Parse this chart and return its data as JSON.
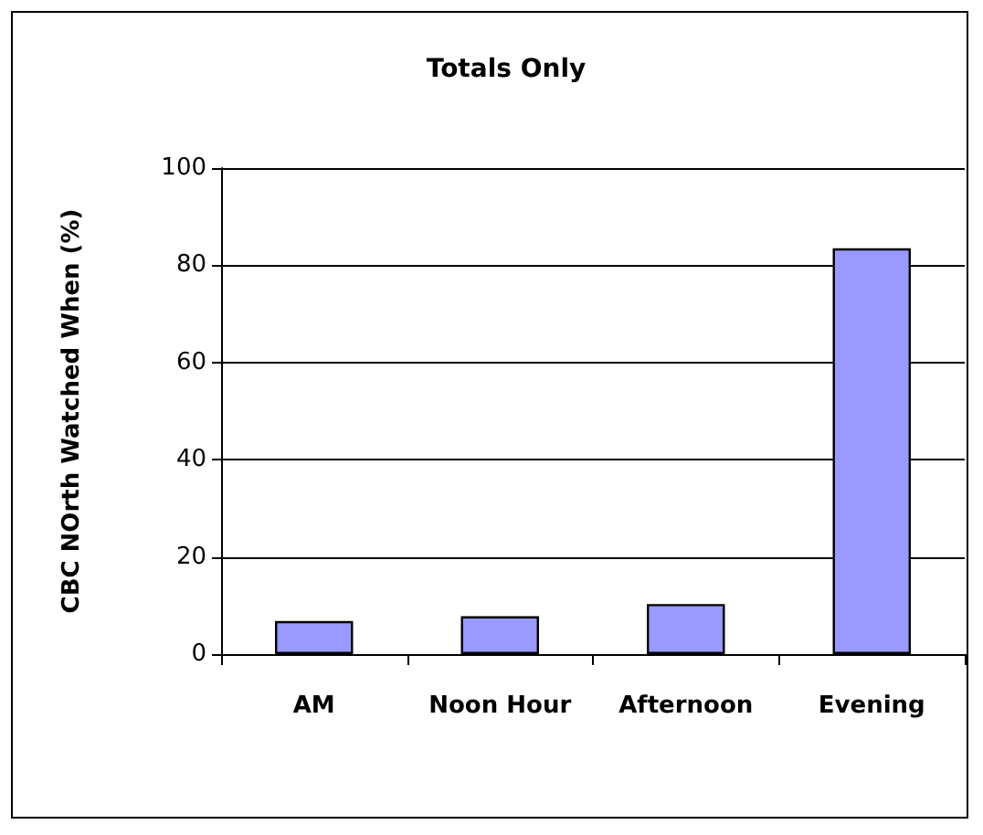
{
  "chart_data": {
    "type": "bar",
    "title": "Totals Only",
    "ylabel": "CBC NOrth Watched When (%)",
    "categories": [
      "AM",
      "Noon Hour",
      "Afternoon",
      "Evening"
    ],
    "values": [
      6.8,
      7.8,
      10.3,
      83.5
    ],
    "color": "#9999ff",
    "ylim": [
      0,
      100
    ],
    "yticks": [
      0,
      20,
      40,
      60,
      80,
      100
    ],
    "grid": "y"
  }
}
